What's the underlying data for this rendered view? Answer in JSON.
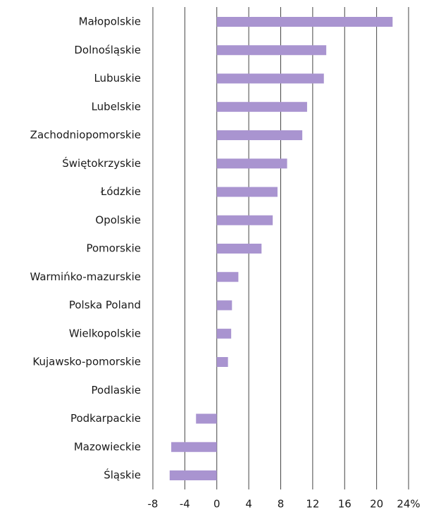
{
  "chart_data": {
    "type": "barh",
    "categories": [
      "Małopolskie",
      "Dolnośląskie",
      "Lubuskie",
      "Lubelskie",
      "Zachodniopomorskie",
      "Świętokrzyskie",
      "Łódzkie",
      "Opolskie",
      "Pomorskie",
      "Warmińko-mazurskie",
      "Polska Poland",
      "Wielkopolskie",
      "Kujawsko-pomorskie",
      "Podlaskie",
      "Podkarpackie",
      "Mazowieckie",
      "Śląskie"
    ],
    "values": [
      22.0,
      13.7,
      13.4,
      11.3,
      10.7,
      8.8,
      7.6,
      7.0,
      5.6,
      2.7,
      1.9,
      1.8,
      1.4,
      0,
      -2.6,
      -5.7,
      -5.9
    ],
    "color": "#a994d0",
    "xlim": [
      -8,
      24
    ],
    "xticks": [
      -8,
      -4,
      0,
      4,
      8,
      12,
      16,
      20,
      {
        "value": 24,
        "label": "24%"
      }
    ],
    "grid": true
  }
}
